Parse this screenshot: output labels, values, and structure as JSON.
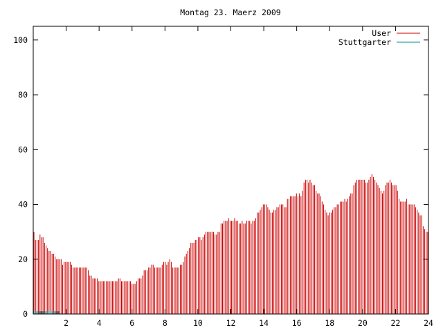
{
  "chart_data": {
    "type": "bar",
    "title": "Montag 23. Maerz 2009",
    "xlabel": "",
    "ylabel": "",
    "xlim": [
      0,
      24
    ],
    "ylim": [
      0,
      105
    ],
    "xticks": [
      2,
      4,
      6,
      8,
      10,
      12,
      14,
      16,
      18,
      20,
      22,
      24
    ],
    "yticks": [
      0,
      20,
      40,
      60,
      80,
      100
    ],
    "xtick_labels": [
      "2",
      "4",
      "6",
      "8",
      "10",
      "12",
      "14",
      "16",
      "18",
      "20",
      "22",
      "24"
    ],
    "ytick_labels": [
      "0",
      "20",
      "40",
      "60",
      "80",
      "100"
    ],
    "grid": false,
    "legend_position": "top-right",
    "colors": {
      "User": "#cc0000",
      "Stuttgarter": "#008b8b"
    },
    "series": [
      {
        "name": "User",
        "sample_interval_minutes": 5,
        "values": [
          30,
          27,
          27,
          27,
          29,
          28,
          28,
          26,
          25,
          24,
          23,
          23,
          22,
          22,
          21,
          20,
          20,
          20,
          20,
          18,
          19,
          19,
          19,
          19,
          19,
          18,
          17,
          17,
          17,
          17,
          17,
          17,
          17,
          17,
          17,
          17,
          16,
          14,
          14,
          13,
          13,
          13,
          13,
          12,
          12,
          12,
          12,
          12,
          12,
          12,
          12,
          12,
          12,
          12,
          12,
          12,
          13,
          13,
          12,
          12,
          12,
          12,
          12,
          12,
          12,
          11,
          11,
          11,
          12,
          13,
          13,
          13,
          14,
          16,
          16,
          16,
          17,
          17,
          18,
          18,
          17,
          17,
          17,
          17,
          17,
          18,
          19,
          19,
          18,
          19,
          20,
          19,
          17,
          17,
          17,
          17,
          17,
          18,
          18,
          19,
          21,
          22,
          23,
          24,
          26,
          26,
          26,
          27,
          27,
          28,
          28,
          27,
          28,
          29,
          30,
          30,
          30,
          30,
          30,
          30,
          29,
          29,
          30,
          30,
          33,
          33,
          34,
          34,
          34,
          35,
          34,
          34,
          34,
          35,
          34,
          34,
          33,
          33,
          34,
          33,
          33,
          34,
          34,
          34,
          33,
          34,
          34,
          35,
          37,
          37,
          38,
          39,
          40,
          40,
          40,
          39,
          38,
          37,
          37,
          38,
          38,
          39,
          39,
          40,
          40,
          40,
          39,
          39,
          42,
          42,
          43,
          43,
          43,
          43,
          44,
          43,
          44,
          43,
          45,
          48,
          49,
          49,
          48,
          49,
          48,
          47,
          47,
          45,
          44,
          44,
          43,
          41,
          40,
          38,
          37,
          36,
          37,
          37,
          38,
          39,
          39,
          40,
          40,
          41,
          41,
          41,
          42,
          41,
          42,
          43,
          44,
          44,
          47,
          48,
          49,
          49,
          49,
          49,
          49,
          49,
          48,
          48,
          49,
          50,
          51,
          50,
          49,
          48,
          47,
          46,
          45,
          44,
          45,
          47,
          48,
          48,
          49,
          48,
          47,
          47,
          47,
          45,
          42,
          41,
          41,
          41,
          41,
          42,
          40,
          40,
          40,
          40,
          40,
          39,
          38,
          37,
          36,
          36,
          32,
          31,
          30,
          30
        ]
      },
      {
        "name": "Stuttgarter",
        "values_note": "",
        "values": [
          1,
          1,
          1,
          1,
          1,
          1,
          1,
          1,
          1,
          1,
          1,
          1,
          1,
          1,
          1,
          1,
          1,
          1,
          1,
          0,
          0,
          0,
          0,
          0,
          0,
          0,
          0,
          0,
          0,
          0,
          0,
          0,
          0,
          0,
          0,
          0,
          0,
          0,
          0,
          0,
          0,
          0,
          0,
          0,
          0,
          0,
          0,
          0,
          0,
          0,
          0,
          0,
          0,
          0,
          0,
          0,
          0,
          0,
          0,
          0,
          0,
          0,
          0,
          0,
          0,
          0,
          0,
          0,
          0,
          0,
          0,
          0,
          0,
          0,
          0,
          0,
          0,
          0,
          0,
          0,
          0,
          0,
          0,
          0,
          0,
          0,
          0,
          0,
          0,
          0,
          0,
          0,
          0,
          0,
          0,
          0,
          0,
          0,
          0,
          0,
          0,
          0,
          0,
          0,
          0,
          0,
          0,
          0,
          0,
          0,
          0,
          0,
          0,
          0,
          0,
          0,
          0,
          0,
          0,
          0,
          0,
          0,
          0,
          0,
          0,
          0,
          0,
          0,
          0,
          0,
          0,
          0,
          0,
          0,
          0,
          0,
          0,
          0,
          0,
          0,
          0,
          0,
          0,
          0,
          0,
          0,
          0,
          0,
          0,
          0,
          0,
          0,
          0,
          0,
          0,
          0,
          0,
          0,
          0,
          0,
          0,
          0,
          0,
          0,
          0,
          0,
          0,
          0,
          0,
          0,
          0,
          0,
          0,
          0,
          0,
          0,
          0,
          0,
          0,
          0,
          0,
          0,
          0,
          0,
          0,
          0,
          0,
          0,
          0,
          0,
          0,
          0,
          0,
          0,
          0,
          0,
          0,
          0,
          0,
          0,
          0,
          0,
          0,
          0,
          0,
          0,
          0,
          0,
          0,
          0,
          0,
          0,
          0,
          0,
          0,
          0,
          0,
          0,
          0,
          0,
          0,
          0,
          0,
          0,
          0,
          0,
          0,
          0,
          0,
          0,
          0,
          0,
          0,
          0,
          0,
          0,
          0,
          0,
          0,
          0,
          0,
          0,
          0,
          0,
          0,
          0,
          0,
          0,
          0,
          0,
          0,
          0,
          0,
          0,
          0,
          0,
          0,
          0,
          0,
          0,
          0,
          0,
          0,
          0,
          0,
          0,
          0,
          0,
          0,
          0,
          0,
          0,
          0,
          0,
          0,
          0,
          0,
          0,
          0,
          0,
          0,
          0,
          0,
          0,
          0,
          0
        ]
      }
    ]
  }
}
